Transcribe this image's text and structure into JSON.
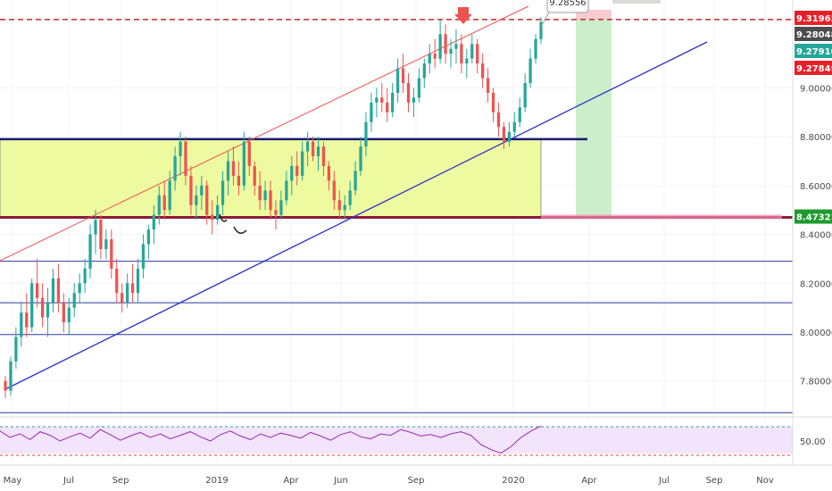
{
  "chart_data": {
    "type": "candlestick",
    "instrument_scale": "linear",
    "x_axis": {
      "tick_labels": [
        "May",
        "Jul",
        "Sep",
        "2019",
        "Apr",
        "Jun",
        "Sep",
        "2020",
        "Apr",
        "Jul",
        "Sep",
        "Nov"
      ]
    },
    "y_axis": {
      "ylim": [
        7.66,
        9.36
      ],
      "tick_values": [
        7.8,
        8.0,
        8.2,
        8.4,
        8.6,
        8.8,
        9.0
      ],
      "tick_labels": [
        "7.80000",
        "8.00000",
        "8.20000",
        "8.40000",
        "8.60000",
        "8.80000",
        "9.00000"
      ]
    },
    "price_tags": [
      {
        "value": 9.31965,
        "label": "9.31965",
        "color": "#e5202a"
      },
      {
        "value": 9.28048,
        "label": "9.28048",
        "color": "#4d4d4d"
      },
      {
        "value": 9.2791,
        "label": "9.27910",
        "color": "#26a69a"
      },
      {
        "value": 9.27849,
        "label": "9.27849",
        "color": "#e5202a"
      },
      {
        "value": 8.47321,
        "label": "8.47321",
        "color": "#1e9b2e"
      }
    ],
    "callout": {
      "label": "9.28556",
      "value": 9.28556
    },
    "horizontal_levels": [
      {
        "value": 9.28,
        "style": "dashed",
        "color": "#c62828"
      },
      {
        "value": 8.79,
        "style": "solid",
        "color": "#1a1a6e"
      },
      {
        "value": 8.47,
        "style": "solid",
        "color": "#8b1a3a"
      },
      {
        "value": 8.29,
        "style": "solid",
        "color": "#2b3a9e"
      },
      {
        "value": 8.12,
        "style": "solid",
        "color": "#2b3a9e"
      },
      {
        "value": 7.99,
        "style": "solid",
        "color": "#2b3a9e"
      },
      {
        "value": 7.67,
        "style": "solid",
        "color": "#2b3a9e"
      }
    ],
    "zone": {
      "from": 8.47,
      "to": 8.79,
      "color": "#eefaa0"
    },
    "trade_box": {
      "entry": 9.28,
      "target": 8.47,
      "stop": 9.32
    },
    "indicator": {
      "name": "RSI",
      "tick_labels": [
        "50.00"
      ],
      "bands": [
        70,
        30
      ],
      "values": [
        64,
        55,
        60,
        52,
        63,
        58,
        50,
        56,
        61,
        54,
        66,
        59,
        51,
        57,
        62,
        55,
        60,
        53,
        58,
        63,
        56,
        50,
        59,
        64,
        57,
        52,
        60,
        55,
        61,
        58,
        54,
        62,
        57,
        51,
        59,
        63,
        56,
        53,
        60,
        58,
        66,
        62,
        57,
        59,
        55,
        60,
        63,
        58,
        45,
        38,
        33,
        42,
        55,
        64,
        71
      ]
    },
    "candles": [
      [
        7.8,
        7.82,
        7.73,
        7.76
      ],
      [
        7.76,
        7.9,
        7.74,
        7.88
      ],
      [
        7.88,
        8.02,
        7.85,
        7.98
      ],
      [
        7.98,
        8.12,
        7.94,
        8.08
      ],
      [
        8.08,
        8.16,
        7.98,
        8.02
      ],
      [
        8.02,
        8.22,
        8.0,
        8.2
      ],
      [
        8.2,
        8.3,
        8.1,
        8.14
      ],
      [
        8.14,
        8.2,
        8.02,
        8.06
      ],
      [
        8.06,
        8.18,
        7.98,
        8.12
      ],
      [
        8.12,
        8.26,
        8.08,
        8.22
      ],
      [
        8.22,
        8.28,
        8.08,
        8.12
      ],
      [
        8.12,
        8.16,
        8.0,
        8.04
      ],
      [
        8.04,
        8.14,
        7.99,
        8.1
      ],
      [
        8.1,
        8.2,
        8.06,
        8.16
      ],
      [
        8.16,
        8.24,
        8.12,
        8.2
      ],
      [
        8.2,
        8.3,
        8.16,
        8.26
      ],
      [
        8.26,
        8.44,
        8.22,
        8.4
      ],
      [
        8.4,
        8.5,
        8.32,
        8.46
      ],
      [
        8.46,
        8.48,
        8.3,
        8.34
      ],
      [
        8.34,
        8.42,
        8.3,
        8.38
      ],
      [
        8.38,
        8.42,
        8.22,
        8.26
      ],
      [
        8.26,
        8.3,
        8.12,
        8.16
      ],
      [
        8.16,
        8.2,
        8.08,
        8.12
      ],
      [
        8.12,
        8.24,
        8.1,
        8.2
      ],
      [
        8.2,
        8.28,
        8.12,
        8.16
      ],
      [
        8.16,
        8.3,
        8.12,
        8.26
      ],
      [
        8.26,
        8.4,
        8.22,
        8.36
      ],
      [
        8.36,
        8.44,
        8.3,
        8.42
      ],
      [
        8.42,
        8.52,
        8.36,
        8.48
      ],
      [
        8.48,
        8.6,
        8.44,
        8.56
      ],
      [
        8.56,
        8.62,
        8.46,
        8.5
      ],
      [
        8.5,
        8.66,
        8.48,
        8.62
      ],
      [
        8.62,
        8.76,
        8.58,
        8.72
      ],
      [
        8.72,
        8.82,
        8.64,
        8.78
      ],
      [
        8.78,
        8.8,
        8.6,
        8.64
      ],
      [
        8.64,
        8.68,
        8.48,
        8.52
      ],
      [
        8.52,
        8.6,
        8.46,
        8.56
      ],
      [
        8.56,
        8.64,
        8.5,
        8.6
      ],
      [
        8.6,
        8.62,
        8.44,
        8.48
      ],
      [
        8.48,
        8.54,
        8.4,
        8.46
      ],
      [
        8.46,
        8.56,
        8.44,
        8.52
      ],
      [
        8.52,
        8.66,
        8.48,
        8.62
      ],
      [
        8.62,
        8.74,
        8.56,
        8.7
      ],
      [
        8.7,
        8.76,
        8.6,
        8.64
      ],
      [
        8.64,
        8.7,
        8.56,
        8.6
      ],
      [
        8.6,
        8.82,
        8.58,
        8.78
      ],
      [
        8.78,
        8.8,
        8.64,
        8.68
      ],
      [
        8.68,
        8.7,
        8.56,
        8.6
      ],
      [
        8.6,
        8.66,
        8.5,
        8.54
      ],
      [
        8.54,
        8.62,
        8.5,
        8.58
      ],
      [
        8.58,
        8.62,
        8.46,
        8.5
      ],
      [
        8.5,
        8.54,
        8.42,
        8.48
      ],
      [
        8.48,
        8.58,
        8.46,
        8.54
      ],
      [
        8.54,
        8.66,
        8.52,
        8.62
      ],
      [
        8.62,
        8.72,
        8.56,
        8.68
      ],
      [
        8.68,
        8.74,
        8.6,
        8.64
      ],
      [
        8.64,
        8.78,
        8.62,
        8.74
      ],
      [
        8.74,
        8.82,
        8.68,
        8.78
      ],
      [
        8.78,
        8.8,
        8.7,
        8.72
      ],
      [
        8.72,
        8.8,
        8.66,
        8.76
      ],
      [
        8.76,
        8.78,
        8.64,
        8.68
      ],
      [
        8.68,
        8.7,
        8.58,
        8.62
      ],
      [
        8.62,
        8.66,
        8.5,
        8.54
      ],
      [
        8.54,
        8.58,
        8.46,
        8.5
      ],
      [
        8.5,
        8.56,
        8.46,
        8.52
      ],
      [
        8.52,
        8.62,
        8.5,
        8.58
      ],
      [
        8.58,
        8.7,
        8.56,
        8.66
      ],
      [
        8.66,
        8.8,
        8.64,
        8.76
      ],
      [
        8.76,
        8.9,
        8.72,
        8.86
      ],
      [
        8.86,
        8.98,
        8.82,
        8.94
      ],
      [
        8.94,
        9.0,
        8.88,
        8.96
      ],
      [
        8.96,
        9.02,
        8.9,
        8.94
      ],
      [
        8.94,
        9.0,
        8.86,
        8.9
      ],
      [
        8.9,
        9.02,
        8.88,
        8.98
      ],
      [
        8.98,
        9.12,
        8.94,
        9.08
      ],
      [
        9.08,
        9.14,
        8.98,
        9.02
      ],
      [
        9.02,
        9.06,
        8.9,
        8.94
      ],
      [
        8.94,
        9.0,
        8.88,
        8.96
      ],
      [
        8.96,
        9.08,
        8.94,
        9.04
      ],
      [
        9.04,
        9.12,
        9.0,
        9.1
      ],
      [
        9.1,
        9.18,
        9.06,
        9.14
      ],
      [
        9.14,
        9.2,
        9.08,
        9.12
      ],
      [
        9.12,
        9.28,
        9.1,
        9.22
      ],
      [
        9.22,
        9.26,
        9.1,
        9.14
      ],
      [
        9.14,
        9.2,
        9.08,
        9.16
      ],
      [
        9.16,
        9.24,
        9.1,
        9.18
      ],
      [
        9.18,
        9.22,
        9.06,
        9.1
      ],
      [
        9.1,
        9.16,
        9.04,
        9.12
      ],
      [
        9.12,
        9.22,
        9.1,
        9.18
      ],
      [
        9.18,
        9.2,
        9.06,
        9.1
      ],
      [
        9.1,
        9.14,
        9.0,
        9.04
      ],
      [
        9.04,
        9.08,
        8.94,
        8.98
      ],
      [
        8.98,
        9.0,
        8.86,
        8.9
      ],
      [
        8.9,
        8.94,
        8.8,
        8.84
      ],
      [
        8.84,
        8.86,
        8.75,
        8.78
      ],
      [
        8.78,
        8.86,
        8.76,
        8.82
      ],
      [
        8.82,
        8.9,
        8.8,
        8.86
      ],
      [
        8.86,
        8.96,
        8.84,
        8.92
      ],
      [
        8.92,
        9.06,
        8.9,
        9.02
      ],
      [
        9.02,
        9.16,
        9.0,
        9.12
      ],
      [
        9.12,
        9.22,
        9.1,
        9.2
      ],
      [
        9.2,
        9.29,
        9.18,
        9.27
      ]
    ]
  }
}
